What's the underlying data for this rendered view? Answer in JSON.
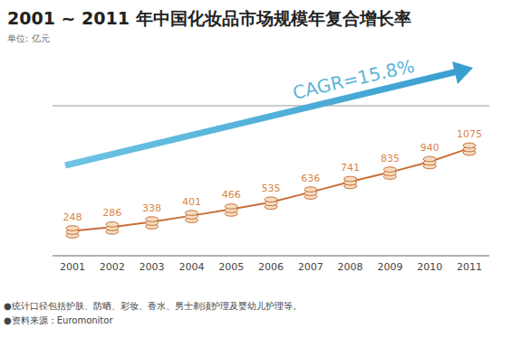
{
  "chart_data": {
    "type": "line",
    "title": "2001 ~ 2011 年中国化妆品市场规模年复合增长率",
    "subtitle": "单位: 亿元",
    "annotations": [
      "CAGR=15.8%"
    ],
    "categories": [
      "2001",
      "2002",
      "2003",
      "2004",
      "2005",
      "2006",
      "2007",
      "2008",
      "2009",
      "2010",
      "2011"
    ],
    "values": [
      248,
      286,
      338,
      401,
      466,
      535,
      636,
      741,
      835,
      940,
      1075
    ],
    "color": "#c8703a",
    "marker": "coins",
    "ylim": [
      0,
      1500
    ],
    "yticks": [
      0,
      250,
      500,
      750,
      1000,
      1250,
      1500
    ],
    "grid": true,
    "tick_labels": "x",
    "data_labels": true,
    "footnotes": [
      "●统计口径包括护肤、防晒、彩妆、香水、男士剃须护理及婴幼儿护理等。",
      "●资料来源：Euromonitor"
    ]
  }
}
